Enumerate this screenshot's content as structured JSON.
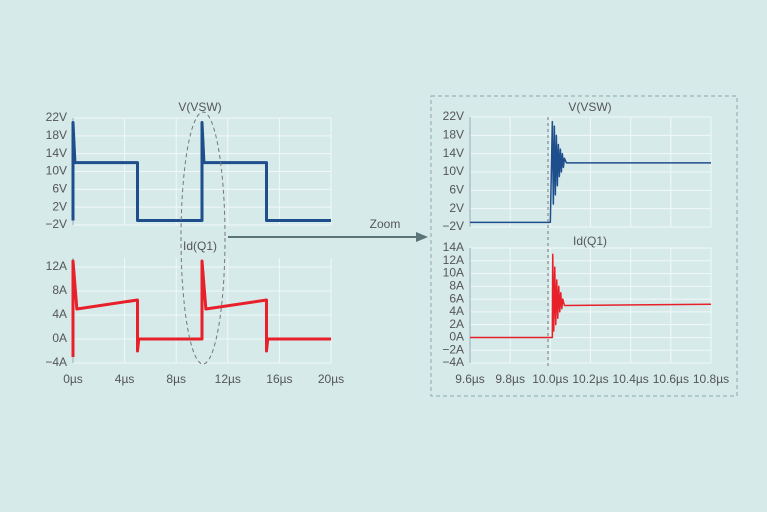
{
  "zoom_label": "Zoom",
  "chart_data": [
    {
      "type": "line",
      "title": "V(VSW)",
      "color": "#1f4e8c",
      "x": [
        0,
        0,
        0.15,
        0.3,
        5,
        5,
        10,
        10,
        10.15,
        10.3,
        15,
        15,
        20
      ],
      "values": [
        -1,
        21,
        12,
        12,
        12,
        -1,
        -1,
        21,
        12,
        12,
        12,
        -1,
        -1
      ],
      "xlim": [
        0,
        20
      ],
      "ylim": [
        -2,
        22
      ],
      "yticks": [
        {
          "value": 22,
          "label": "22V"
        },
        {
          "value": 18,
          "label": "18V"
        },
        {
          "value": 14,
          "label": "14V"
        },
        {
          "value": 10,
          "label": "10V"
        },
        {
          "value": 6,
          "label": "6V"
        },
        {
          "value": 2,
          "label": "2V"
        },
        {
          "value": -2,
          "label": "−2V"
        }
      ],
      "grid": true
    },
    {
      "type": "line",
      "title": "Id(Q1)",
      "color": "#e8202a",
      "x": [
        0,
        0,
        0.3,
        5,
        5,
        5.1,
        10,
        10,
        10.3,
        15,
        15,
        15.1,
        20
      ],
      "values": [
        -3,
        13,
        5,
        6.5,
        -2,
        0,
        0,
        13,
        5,
        6.5,
        -2,
        0,
        0
      ],
      "xlim": [
        0,
        20
      ],
      "ylim": [
        -4,
        13.5
      ],
      "yticks": [
        {
          "value": 12,
          "label": "12A"
        },
        {
          "value": 8,
          "label": "8A"
        },
        {
          "value": 4,
          "label": "4A"
        },
        {
          "value": 0,
          "label": "0A"
        },
        {
          "value": -4,
          "label": "−4A"
        }
      ],
      "xticks": [
        {
          "value": 0,
          "label": "0µs"
        },
        {
          "value": 4,
          "label": "4µs"
        },
        {
          "value": 8,
          "label": "8µs"
        },
        {
          "value": 12,
          "label": "12µs"
        },
        {
          "value": 16,
          "label": "16µs"
        },
        {
          "value": 20,
          "label": "20µs"
        }
      ],
      "grid": true
    },
    {
      "type": "line",
      "title": "V(VSW)",
      "color": "#1f4e8c",
      "x": [
        9.6,
        10.0,
        10.01,
        10.015,
        10.02,
        10.025,
        10.03,
        10.035,
        10.04,
        10.045,
        10.05,
        10.055,
        10.06,
        10.065,
        10.07,
        10.08,
        10.8
      ],
      "values": [
        -1,
        -1,
        21,
        3,
        20,
        5,
        18,
        7,
        16,
        9,
        15,
        10,
        14,
        11,
        13,
        12,
        12
      ],
      "xlim": [
        9.6,
        10.8
      ],
      "ylim": [
        -2,
        22
      ],
      "yticks": [
        {
          "value": 22,
          "label": "22V"
        },
        {
          "value": 18,
          "label": "18V"
        },
        {
          "value": 14,
          "label": "14V"
        },
        {
          "value": 10,
          "label": "10V"
        },
        {
          "value": 6,
          "label": "6V"
        },
        {
          "value": 2,
          "label": "2V"
        },
        {
          "value": -2,
          "label": "−2V"
        }
      ],
      "grid": true
    },
    {
      "type": "line",
      "title": "Id(Q1)",
      "color": "#e8202a",
      "x": [
        9.6,
        10.01,
        10.012,
        10.017,
        10.022,
        10.027,
        10.032,
        10.037,
        10.042,
        10.047,
        10.052,
        10.057,
        10.062,
        10.07,
        10.8
      ],
      "values": [
        0,
        0,
        13,
        1,
        11,
        2,
        9,
        3,
        8,
        4,
        7,
        4.5,
        6,
        5,
        5.2
      ],
      "xlim": [
        9.6,
        10.8
      ],
      "ylim": [
        -4,
        14
      ],
      "yticks": [
        {
          "value": 14,
          "label": "14A"
        },
        {
          "value": 12,
          "label": "12A"
        },
        {
          "value": 10,
          "label": "10A"
        },
        {
          "value": 8,
          "label": "8A"
        },
        {
          "value": 6,
          "label": "6A"
        },
        {
          "value": 4,
          "label": "4A"
        },
        {
          "value": 2,
          "label": "2A"
        },
        {
          "value": 0,
          "label": "0A"
        },
        {
          "value": -2,
          "label": "−2A"
        },
        {
          "value": -4,
          "label": "−4A"
        }
      ],
      "xticks": [
        {
          "value": 9.6,
          "label": "9.6µs"
        },
        {
          "value": 9.8,
          "label": "9.8µs"
        },
        {
          "value": 10.0,
          "label": "10.0µs"
        },
        {
          "value": 10.2,
          "label": "10.2µs"
        },
        {
          "value": 10.4,
          "label": "10.4µs"
        },
        {
          "value": 10.6,
          "label": "10.6µs"
        },
        {
          "value": 10.8,
          "label": "10.8µs"
        }
      ],
      "grid": true
    }
  ]
}
